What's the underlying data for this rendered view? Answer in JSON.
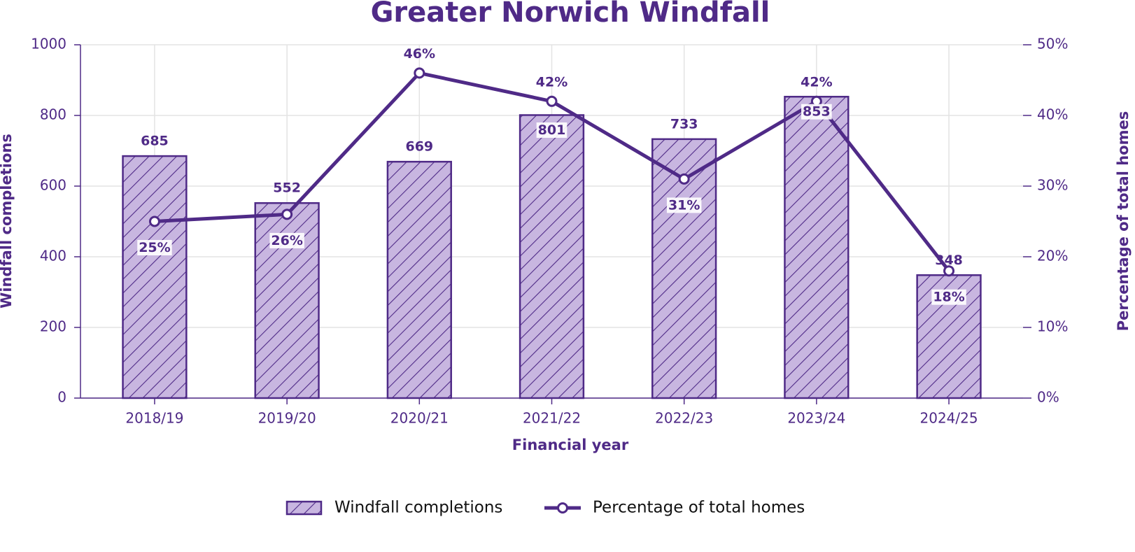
{
  "chart_data": {
    "type": "combo",
    "title": "Greater Norwich Windfall",
    "x_label": "Financial year",
    "y_label": "Windfall completions",
    "y2_label": "Percentage of total homes",
    "categories": [
      "2018/19",
      "2019/20",
      "2020/21",
      "2021/22",
      "2022/23",
      "2023/24",
      "2024/25"
    ],
    "series": [
      {
        "name": "Windfall completions",
        "type": "bar",
        "color": "#c8b6e0",
        "edge_color": "#4f2a87",
        "values": [
          685,
          552,
          669,
          801,
          733,
          853,
          348
        ]
      },
      {
        "name": "Percentage of total homes",
        "type": "line",
        "axis": "y2",
        "color": "#4f2a87",
        "values": [
          25,
          26,
          46,
          42,
          31,
          42,
          18
        ],
        "value_labels": [
          "25%",
          "26%",
          "46%",
          "42%",
          "31%",
          "42%",
          "18%"
        ]
      }
    ],
    "ylim": [
      0,
      1000
    ],
    "yticks": [
      0,
      200,
      400,
      600,
      800,
      1000
    ],
    "y2lim": [
      0,
      50
    ],
    "y2ticks": [
      {
        "value": 0,
        "label": "0%"
      },
      {
        "value": 10,
        "label": "10%"
      },
      {
        "value": 20,
        "label": "20%"
      },
      {
        "value": 30,
        "label": "30%"
      },
      {
        "value": 40,
        "label": "40%"
      },
      {
        "value": 50,
        "label": "50%"
      }
    ],
    "grid": true,
    "legend": "lower center"
  }
}
